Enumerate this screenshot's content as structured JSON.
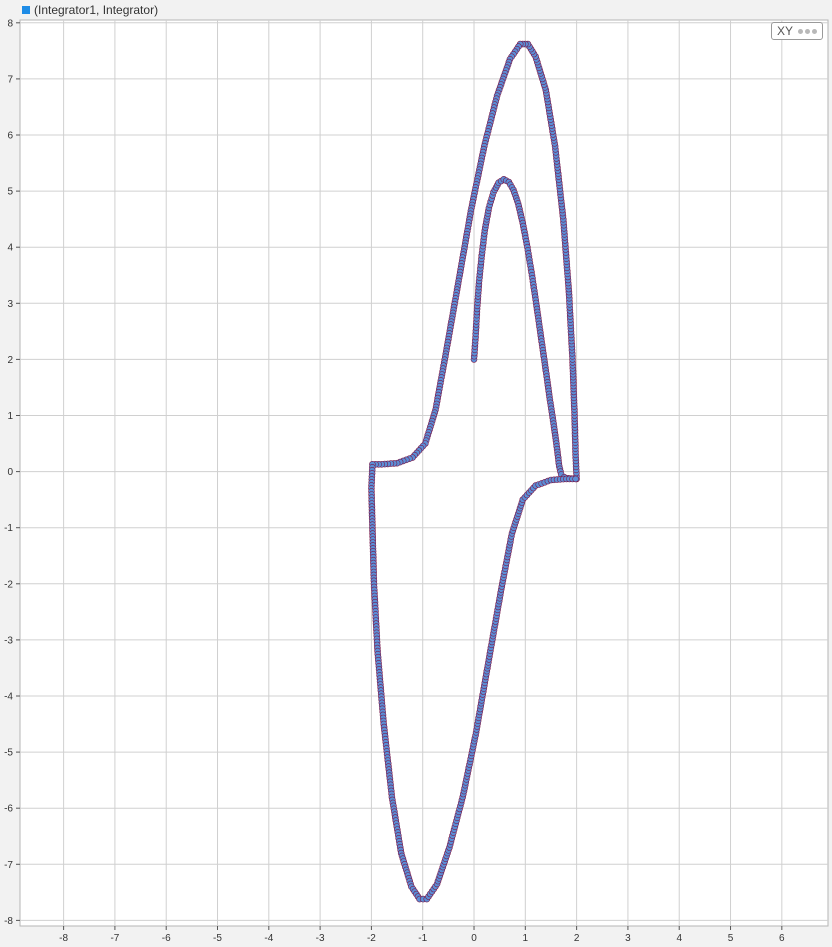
{
  "legend": {
    "label": "(Integrator1, Integrator)",
    "color": "#1e8ce6"
  },
  "toolbar": {
    "mode_label": "XY",
    "menu_icon": "ellipsis-icon"
  },
  "chart_data": {
    "type": "scatter",
    "title": "",
    "xlabel": "",
    "ylabel": "",
    "xlim": [
      -8.85,
      6.9
    ],
    "ylim": [
      -8.1,
      8.05
    ],
    "xticks": [
      -8,
      -7,
      -6,
      -5,
      -4,
      -3,
      -2,
      -1,
      0,
      1,
      2,
      3,
      4,
      5,
      6
    ],
    "yticks": [
      8,
      7,
      6,
      5,
      4,
      3,
      2,
      1,
      0,
      -1,
      -2,
      -3,
      -4,
      -5,
      -6,
      -7,
      -8
    ],
    "grid": true,
    "background": "#ffffff",
    "gridColor": "#d0d0d0",
    "markerFill": "#5b8ed6",
    "markerStroke": "#7a1a4a",
    "lineColor": "#a0123c",
    "series": [
      {
        "name": "(Integrator1, Integrator)",
        "points": [
          [
            0,
            2
          ],
          [
            0.03,
            2.4
          ],
          [
            0.06,
            2.9
          ],
          [
            0.1,
            3.4
          ],
          [
            0.15,
            3.85
          ],
          [
            0.21,
            4.3
          ],
          [
            0.29,
            4.7
          ],
          [
            0.38,
            4.98
          ],
          [
            0.48,
            5.15
          ],
          [
            0.58,
            5.21
          ],
          [
            0.68,
            5.16
          ],
          [
            0.77,
            5.02
          ],
          [
            0.86,
            4.78
          ],
          [
            0.95,
            4.43
          ],
          [
            1.04,
            4.0
          ],
          [
            1.13,
            3.5
          ],
          [
            1.22,
            2.95
          ],
          [
            1.31,
            2.37
          ],
          [
            1.4,
            1.8
          ],
          [
            1.48,
            1.28
          ],
          [
            1.56,
            0.8
          ],
          [
            1.62,
            0.4
          ],
          [
            1.66,
            0.1
          ],
          [
            1.7,
            -0.05
          ],
          [
            1.76,
            -0.1
          ],
          [
            1.84,
            -0.12
          ],
          [
            2.0,
            -0.13
          ],
          [
            1.98,
            0.3
          ],
          [
            1.96,
            1.0
          ],
          [
            1.92,
            2.0
          ],
          [
            1.85,
            3.2
          ],
          [
            1.74,
            4.5
          ],
          [
            1.58,
            5.8
          ],
          [
            1.4,
            6.8
          ],
          [
            1.2,
            7.4
          ],
          [
            1.05,
            7.62
          ],
          [
            0.9,
            7.62
          ],
          [
            0.7,
            7.35
          ],
          [
            0.45,
            6.7
          ],
          [
            0.2,
            5.8
          ],
          [
            -0.05,
            4.7
          ],
          [
            -0.3,
            3.4
          ],
          [
            -0.55,
            2.1
          ],
          [
            -0.75,
            1.1
          ],
          [
            -0.95,
            0.5
          ],
          [
            -1.2,
            0.25
          ],
          [
            -1.5,
            0.15
          ],
          [
            -1.8,
            0.13
          ],
          [
            -1.98,
            0.13
          ],
          [
            -2.0,
            -0.3
          ],
          [
            -1.98,
            -1.0
          ],
          [
            -1.95,
            -2.0
          ],
          [
            -1.88,
            -3.2
          ],
          [
            -1.76,
            -4.5
          ],
          [
            -1.6,
            -5.8
          ],
          [
            -1.42,
            -6.8
          ],
          [
            -1.22,
            -7.4
          ],
          [
            -1.06,
            -7.62
          ],
          [
            -0.92,
            -7.62
          ],
          [
            -0.72,
            -7.35
          ],
          [
            -0.48,
            -6.7
          ],
          [
            -0.22,
            -5.8
          ],
          [
            0.03,
            -4.7
          ],
          [
            0.28,
            -3.4
          ],
          [
            0.53,
            -2.1
          ],
          [
            0.74,
            -1.1
          ],
          [
            0.95,
            -0.5
          ],
          [
            1.2,
            -0.25
          ],
          [
            1.5,
            -0.15
          ],
          [
            1.8,
            -0.13
          ],
          [
            1.98,
            -0.13
          ]
        ]
      }
    ]
  }
}
